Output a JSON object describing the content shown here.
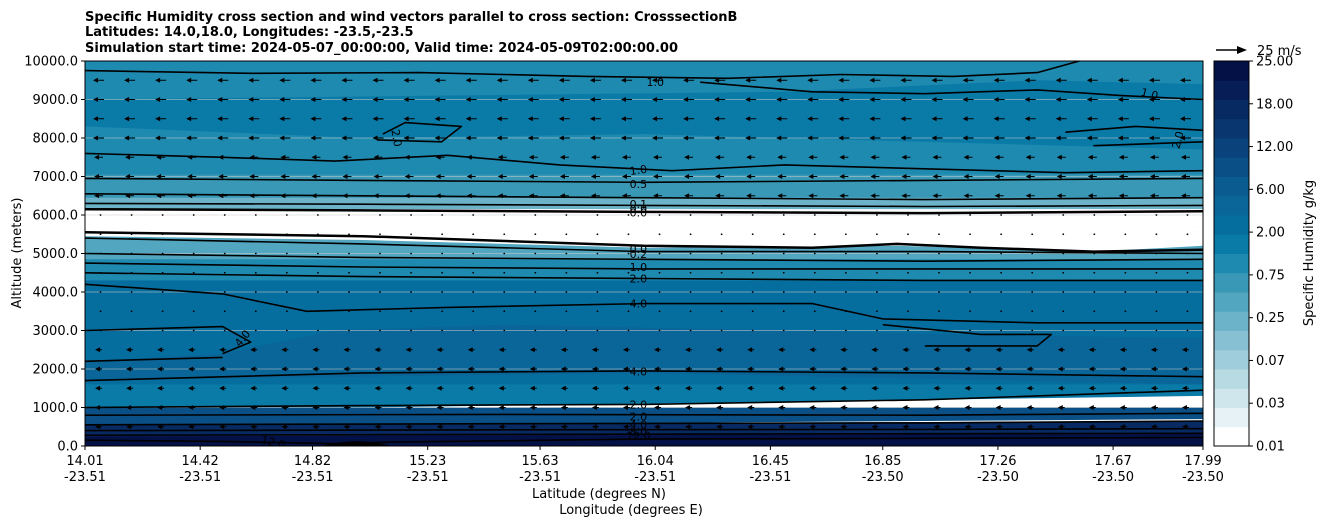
{
  "chart_data": {
    "type": "contour",
    "title_lines": [
      "Specific Humidity cross section and wind vectors parallel to cross section: CrosssectionB",
      "Latitudes: 14.0,18.0, Longitudes: -23.5,-23.5",
      "Simulation start time: 2024-05-07_00:00:00, Valid time: 2024-05-09T02:00:00.00"
    ],
    "ylabel": "Altitude (meters)",
    "xlabel_lat": "Latitude (degrees N)",
    "xlabel_lon": "Longitude (degrees E)",
    "ylim": [
      0,
      10000
    ],
    "y_ticks": [
      "0.0",
      "1000.0",
      "2000.0",
      "3000.0",
      "4000.0",
      "5000.0",
      "6000.0",
      "7000.0",
      "8000.0",
      "9000.0",
      "10000.0"
    ],
    "x_ticks": [
      {
        "lat": "14.01",
        "lon": "-23.51"
      },
      {
        "lat": "14.42",
        "lon": "-23.51"
      },
      {
        "lat": "14.82",
        "lon": "-23.51"
      },
      {
        "lat": "15.23",
        "lon": "-23.51"
      },
      {
        "lat": "15.63",
        "lon": "-23.51"
      },
      {
        "lat": "16.04",
        "lon": "-23.51"
      },
      {
        "lat": "16.45",
        "lon": "-23.51"
      },
      {
        "lat": "16.85",
        "lon": "-23.50"
      },
      {
        "lat": "17.26",
        "lon": "-23.50"
      },
      {
        "lat": "17.67",
        "lon": "-23.50"
      },
      {
        "lat": "17.99",
        "lon": "-23.50"
      }
    ],
    "colorbar": {
      "label": "Specific Humidity g/kg",
      "ticks": [
        "0.01",
        "0.03",
        "0.07",
        "0.25",
        "0.75",
        "2.00",
        "6.00",
        "12.00",
        "18.00",
        "25.00"
      ],
      "levels": [
        0.01,
        0.02,
        0.03,
        0.05,
        0.07,
        0.1,
        0.25,
        0.5,
        0.75,
        1.0,
        2.0,
        4.0,
        6.0,
        8.0,
        12.0,
        15.0,
        18.0,
        20.0,
        25.0
      ]
    },
    "wind_reference": {
      "label": "25 m/s"
    },
    "contour_labels": [
      {
        "text": "1.0",
        "x": 16.04,
        "y": 9450
      },
      {
        "text": "1.0",
        "x": 17.8,
        "y": 9150,
        "rot": 15
      },
      {
        "text": "2.0",
        "x": 15.12,
        "y": 8000,
        "rot": 80
      },
      {
        "text": "2.0",
        "x": 17.9,
        "y": 7950,
        "rot": -75
      },
      {
        "text": "1.0",
        "x": 15.98,
        "y": 7170,
        "rot": -8
      },
      {
        "text": "0.5",
        "x": 15.98,
        "y": 6800
      },
      {
        "text": "0.1",
        "x": 15.98,
        "y": 6280
      },
      {
        "text": "0.0",
        "x": 15.98,
        "y": 6150
      },
      {
        "text": "0.0",
        "x": 15.98,
        "y": 6060
      },
      {
        "text": "0.0",
        "x": 15.98,
        "y": 5120
      },
      {
        "text": "0.2",
        "x": 15.98,
        "y": 4990
      },
      {
        "text": "1.0",
        "x": 15.98,
        "y": 4650
      },
      {
        "text": "2.0",
        "x": 15.98,
        "y": 4350
      },
      {
        "text": "4.0",
        "x": 15.98,
        "y": 3700
      },
      {
        "text": "4.0",
        "x": 14.57,
        "y": 2800,
        "rot": -50
      },
      {
        "text": "4.0",
        "x": 15.98,
        "y": 1930
      },
      {
        "text": "2.0",
        "x": 15.98,
        "y": 1080
      },
      {
        "text": "2.0",
        "x": 15.98,
        "y": 770
      },
      {
        "text": "4.0",
        "x": 15.98,
        "y": 560
      },
      {
        "text": "8.0",
        "x": 15.98,
        "y": 380
      },
      {
        "text": "12.0",
        "x": 15.98,
        "y": 270
      },
      {
        "text": "12.0",
        "x": 14.68,
        "y": 100,
        "rot": 15
      }
    ]
  },
  "colors": {
    "palette": [
      "#ffffff",
      "#e6f2f5",
      "#cfe6ec",
      "#b7dae3",
      "#9fcddb",
      "#86c0d2",
      "#6cb3c9",
      "#52a6c0",
      "#3898b5",
      "#1f8ab0",
      "#0a7aa7",
      "#066e9f",
      "#0a6598",
      "#0a5b90",
      "#0a4f86",
      "#0a437c",
      "#0a3670",
      "#082a63",
      "#061d55",
      "#041147"
    ],
    "grid": "#cccccc",
    "contour": "#000000"
  }
}
